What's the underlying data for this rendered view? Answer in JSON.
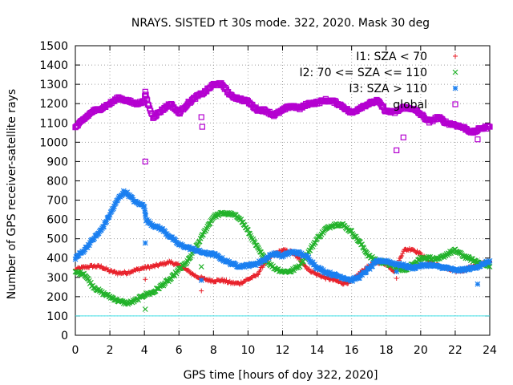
{
  "chart_data": {
    "type": "scatter",
    "title": "NRAYS. SISTED rt 30s mode. 322, 2020. Mask 30 deg",
    "xlabel": "GPS time [hours of doy 322, 2020]",
    "ylabel": "Number of GPS receiver-satellite rays",
    "xlim": [
      0,
      24
    ],
    "ylim": [
      0,
      1500
    ],
    "x_ticks": [
      0,
      2,
      4,
      6,
      8,
      10,
      12,
      14,
      16,
      18,
      20,
      22,
      24
    ],
    "y_ticks": [
      0,
      100,
      200,
      300,
      400,
      500,
      600,
      700,
      800,
      900,
      1000,
      1100,
      1200,
      1300,
      1400,
      1500
    ],
    "grid": true,
    "legend_position": "top-right",
    "reference_line": {
      "y": 100,
      "color": "#40e0e8"
    },
    "series": [
      {
        "name": "I1: SZA < 70",
        "marker": "+",
        "color": "#e8202a",
        "points": [
          [
            0,
            340
          ],
          [
            0.5,
            352
          ],
          [
            1,
            358
          ],
          [
            1.5,
            355
          ],
          [
            2,
            332
          ],
          [
            2.5,
            322
          ],
          [
            3,
            325
          ],
          [
            3.5,
            338
          ],
          [
            4,
            350
          ],
          [
            4.5,
            356
          ],
          [
            5,
            368
          ],
          [
            5.5,
            380
          ],
          [
            6,
            360
          ],
          [
            6.5,
            335
          ],
          [
            7,
            305
          ],
          [
            7.5,
            290
          ],
          [
            8,
            282
          ],
          [
            8.5,
            285
          ],
          [
            9,
            272
          ],
          [
            9.5,
            268
          ],
          [
            10,
            290
          ],
          [
            10.5,
            310
          ],
          [
            11,
            380
          ],
          [
            11.5,
            420
          ],
          [
            12,
            440
          ],
          [
            12.5,
            432
          ],
          [
            13,
            392
          ],
          [
            13.5,
            340
          ],
          [
            14,
            315
          ],
          [
            14.5,
            298
          ],
          [
            15,
            285
          ],
          [
            15.5,
            270
          ],
          [
            16,
            278
          ],
          [
            16.5,
            325
          ],
          [
            17,
            358
          ],
          [
            17.5,
            380
          ],
          [
            18,
            370
          ],
          [
            18.5,
            330
          ],
          [
            19,
            440
          ],
          [
            19.5,
            448
          ],
          [
            20,
            420
          ],
          [
            20.5,
            380
          ],
          [
            21,
            360
          ],
          [
            21.5,
            345
          ],
          [
            22,
            332
          ],
          [
            22.5,
            338
          ],
          [
            23,
            358
          ],
          [
            23.5,
            372
          ],
          [
            24,
            380
          ]
        ],
        "outliers": [
          [
            4.05,
            290
          ],
          [
            7.3,
            230
          ],
          [
            18.6,
            295
          ]
        ]
      },
      {
        "name": "I2: 70 <= SZA <= 110",
        "marker": "x",
        "color": "#22b22a",
        "points": [
          [
            0,
            325
          ],
          [
            0.5,
            320
          ],
          [
            1,
            255
          ],
          [
            1.5,
            222
          ],
          [
            2,
            200
          ],
          [
            2.5,
            178
          ],
          [
            3,
            165
          ],
          [
            3.5,
            180
          ],
          [
            4,
            210
          ],
          [
            4.5,
            222
          ],
          [
            5,
            258
          ],
          [
            5.5,
            290
          ],
          [
            6,
            340
          ],
          [
            6.5,
            382
          ],
          [
            7,
            458
          ],
          [
            7.5,
            540
          ],
          [
            8,
            615
          ],
          [
            8.5,
            632
          ],
          [
            9,
            628
          ],
          [
            9.5,
            610
          ],
          [
            10,
            540
          ],
          [
            10.5,
            460
          ],
          [
            11,
            390
          ],
          [
            11.5,
            350
          ],
          [
            12,
            330
          ],
          [
            12.5,
            332
          ],
          [
            13,
            362
          ],
          [
            13.5,
            430
          ],
          [
            14,
            500
          ],
          [
            14.5,
            550
          ],
          [
            15,
            575
          ],
          [
            15.5,
            572
          ],
          [
            16,
            535
          ],
          [
            16.5,
            478
          ],
          [
            17,
            410
          ],
          [
            17.5,
            385
          ],
          [
            18,
            375
          ],
          [
            18.5,
            355
          ],
          [
            19,
            335
          ],
          [
            19.5,
            365
          ],
          [
            20,
            400
          ],
          [
            20.5,
            402
          ],
          [
            21,
            390
          ],
          [
            21.5,
            420
          ],
          [
            22,
            440
          ],
          [
            22.5,
            410
          ],
          [
            23,
            390
          ],
          [
            23.5,
            372
          ],
          [
            24,
            355
          ]
        ],
        "outliers": [
          [
            4.05,
            135
          ],
          [
            7.3,
            355
          ],
          [
            18.6,
            340
          ]
        ]
      },
      {
        "name": "I3: SZA > 110",
        "marker": "*",
        "color": "#1a7ff0",
        "points": [
          [
            0,
            400
          ],
          [
            0.5,
            440
          ],
          [
            1,
            495
          ],
          [
            1.5,
            545
          ],
          [
            2,
            625
          ],
          [
            2.5,
            710
          ],
          [
            2.8,
            742
          ],
          [
            3,
            735
          ],
          [
            3.5,
            688
          ],
          [
            4,
            670
          ],
          [
            4.1,
            595
          ],
          [
            4.5,
            570
          ],
          [
            5,
            550
          ],
          [
            5.5,
            510
          ],
          [
            6,
            470
          ],
          [
            6.5,
            455
          ],
          [
            7,
            440
          ],
          [
            7.5,
            425
          ],
          [
            8,
            420
          ],
          [
            8.5,
            395
          ],
          [
            9,
            372
          ],
          [
            9.5,
            358
          ],
          [
            10,
            362
          ],
          [
            10.5,
            370
          ],
          [
            11,
            395
          ],
          [
            11.5,
            425
          ],
          [
            12,
            410
          ],
          [
            12.5,
            432
          ],
          [
            13,
            425
          ],
          [
            13.5,
            400
          ],
          [
            14,
            350
          ],
          [
            14.5,
            328
          ],
          [
            15,
            312
          ],
          [
            15.5,
            300
          ],
          [
            16,
            285
          ],
          [
            16.5,
            305
          ],
          [
            17,
            345
          ],
          [
            17.5,
            385
          ],
          [
            18,
            385
          ],
          [
            18.5,
            370
          ],
          [
            19,
            362
          ],
          [
            19.5,
            348
          ],
          [
            20,
            360
          ],
          [
            20.5,
            365
          ],
          [
            21,
            355
          ],
          [
            21.5,
            350
          ],
          [
            22,
            335
          ],
          [
            22.5,
            340
          ],
          [
            23,
            348
          ],
          [
            23.5,
            362
          ],
          [
            24,
            385
          ]
        ],
        "outliers": [
          [
            4.05,
            478
          ],
          [
            7.3,
            285
          ],
          [
            18.6,
            330
          ],
          [
            23.3,
            265
          ]
        ]
      },
      {
        "name": "global",
        "marker": "square",
        "color": "#b400d0",
        "points": [
          [
            0,
            1075
          ],
          [
            0.5,
            1120
          ],
          [
            1,
            1160
          ],
          [
            1.5,
            1175
          ],
          [
            2,
            1200
          ],
          [
            2.5,
            1230
          ],
          [
            3,
            1215
          ],
          [
            3.5,
            1200
          ],
          [
            4,
            1210
          ],
          [
            4.05,
            1255
          ],
          [
            4.2,
            1200
          ],
          [
            4.5,
            1130
          ],
          [
            5,
            1165
          ],
          [
            5.5,
            1200
          ],
          [
            6,
            1150
          ],
          [
            6.5,
            1200
          ],
          [
            7,
            1235
          ],
          [
            7.5,
            1260
          ],
          [
            8,
            1300
          ],
          [
            8.5,
            1300
          ],
          [
            9,
            1240
          ],
          [
            9.5,
            1225
          ],
          [
            10,
            1210
          ],
          [
            10.5,
            1170
          ],
          [
            11,
            1165
          ],
          [
            11.5,
            1140
          ],
          [
            12,
            1165
          ],
          [
            12.5,
            1190
          ],
          [
            13,
            1175
          ],
          [
            13.5,
            1200
          ],
          [
            14,
            1205
          ],
          [
            14.5,
            1218
          ],
          [
            15,
            1210
          ],
          [
            15.5,
            1185
          ],
          [
            16,
            1150
          ],
          [
            16.5,
            1180
          ],
          [
            17,
            1200
          ],
          [
            17.5,
            1215
          ],
          [
            18,
            1160
          ],
          [
            18.5,
            1155
          ],
          [
            19,
            1180
          ],
          [
            19.5,
            1175
          ],
          [
            20,
            1145
          ],
          [
            20.5,
            1105
          ],
          [
            21,
            1130
          ],
          [
            21.5,
            1100
          ],
          [
            22,
            1090
          ],
          [
            22.5,
            1075
          ],
          [
            23,
            1050
          ],
          [
            23.5,
            1072
          ],
          [
            24,
            1080
          ]
        ],
        "outliers": [
          [
            4.05,
            900
          ],
          [
            7.3,
            1130
          ],
          [
            7.35,
            1080
          ],
          [
            18.6,
            958
          ],
          [
            19.0,
            1025
          ],
          [
            23.3,
            1015
          ]
        ]
      }
    ]
  }
}
